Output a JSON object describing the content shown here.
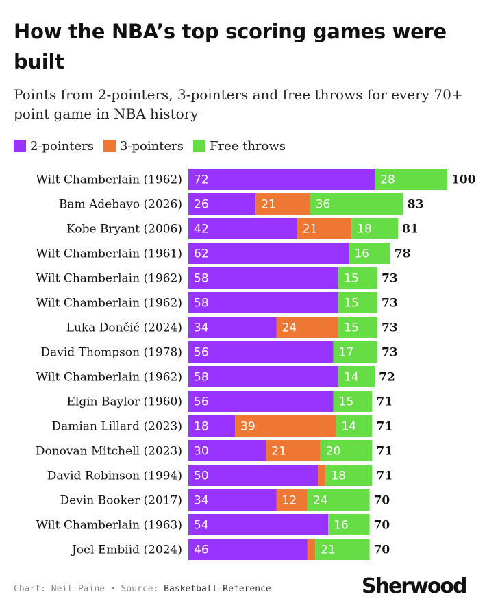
{
  "title": "How the NBA’s top scoring games were built",
  "subtitle": "Points from 2-pointers, 3-pointers and free throws for every 70+ point game in NBA history",
  "footer": {
    "credit": "Chart: Neil Paine",
    "separator": "•",
    "source_label": "Source:",
    "source": "Basketball-Reference"
  },
  "logo": "Sherwood",
  "colors": {
    "two": "#9933ff",
    "three": "#ee7733",
    "ft": "#66dd44",
    "text": "#111111",
    "bar_label": "#ffffff"
  },
  "chart_data": {
    "type": "bar",
    "orientation": "horizontal",
    "stacked": true,
    "title": "How the NBA’s top scoring games were built",
    "subtitle": "Points from 2-pointers, 3-pointers and free throws for every 70+ point game in NBA history",
    "xlim": [
      0,
      100
    ],
    "legend": "top-left",
    "grid": false,
    "categories": [
      "Wilt Chamberlain (1962)",
      "Bam Adebayo (2026)",
      "Kobe Bryant (2006)",
      "Wilt Chamberlain (1961)",
      "Wilt Chamberlain (1962)",
      "Wilt Chamberlain (1962)",
      "Luka Dončić (2024)",
      "David Thompson (1978)",
      "Wilt Chamberlain (1962)",
      "Elgin Baylor (1960)",
      "Damian Lillard (2023)",
      "Donovan Mitchell (2023)",
      "David Robinson (1994)",
      "Devin Booker (2017)",
      "Wilt Chamberlain (1963)",
      "Joel Embiid (2024)"
    ],
    "series": [
      {
        "name": "2-pointers",
        "values": [
          72,
          26,
          42,
          62,
          58,
          58,
          34,
          56,
          58,
          56,
          18,
          30,
          50,
          34,
          54,
          46
        ]
      },
      {
        "name": "3-pointers",
        "values": [
          0,
          21,
          21,
          0,
          0,
          0,
          24,
          0,
          0,
          0,
          39,
          21,
          3,
          12,
          0,
          3
        ]
      },
      {
        "name": "Free throws",
        "values": [
          28,
          36,
          18,
          16,
          15,
          15,
          15,
          17,
          14,
          15,
          14,
          20,
          18,
          24,
          16,
          21
        ]
      }
    ],
    "totals": [
      100,
      83,
      81,
      78,
      73,
      73,
      73,
      73,
      72,
      71,
      71,
      71,
      71,
      70,
      70,
      70
    ],
    "segment_labels": [
      [
        "72",
        "",
        "28"
      ],
      [
        "26",
        "21",
        "36"
      ],
      [
        "42",
        "21",
        "18"
      ],
      [
        "62",
        "",
        "16"
      ],
      [
        "58",
        "",
        "15"
      ],
      [
        "58",
        "",
        "15"
      ],
      [
        "34",
        "24",
        "15"
      ],
      [
        "56",
        "",
        "17"
      ],
      [
        "58",
        "",
        "14"
      ],
      [
        "56",
        "",
        "15"
      ],
      [
        "18",
        "39",
        "14"
      ],
      [
        "30",
        "21",
        "20"
      ],
      [
        "50",
        "",
        "18"
      ],
      [
        "34",
        "12",
        "24"
      ],
      [
        "54",
        "",
        "16"
      ],
      [
        "46",
        "",
        "21"
      ]
    ]
  }
}
